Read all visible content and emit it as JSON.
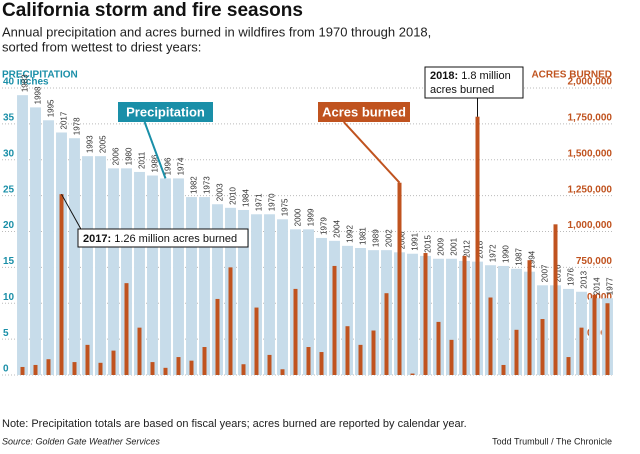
{
  "chart_data": {
    "type": "bar",
    "title": "California storm and fire seasons",
    "subtitle": [
      "Annual precipitation and acres burned in wildfires from 1970 through 2018,",
      "sorted from wettest to driest years:"
    ],
    "y_label": "PRECIPITATION",
    "y2_label": "ACRES BURNED",
    "categories": [
      "1983",
      "1998",
      "1995",
      "2017",
      "1978",
      "1993",
      "2005",
      "2006",
      "1980",
      "2011",
      "1986",
      "1996",
      "1974",
      "1982",
      "1973",
      "2003",
      "2010",
      "1984",
      "1971",
      "1970",
      "1975",
      "2000",
      "1999",
      "1979",
      "2004",
      "1992",
      "1981",
      "1989",
      "2002",
      "2008",
      "1991",
      "2015",
      "2009",
      "2001",
      "2012",
      "2018",
      "1972",
      "1990",
      "1987",
      "1994",
      "2007",
      "2016",
      "1976",
      "2013",
      "2014",
      "1977"
    ],
    "series": [
      {
        "name": "Precipitation",
        "color": "#c7dcea",
        "label_color": "#1a8fa8",
        "values": [
          39,
          37.3,
          35.5,
          33.8,
          33,
          30.5,
          30.5,
          28.8,
          28.8,
          28.3,
          27.8,
          27.4,
          27.4,
          24.8,
          24.8,
          23.8,
          23.3,
          23,
          22.4,
          22.4,
          21.7,
          20.3,
          20.3,
          19.1,
          18.7,
          18,
          17.7,
          17.4,
          17.4,
          17.1,
          16.9,
          16.6,
          16.2,
          16.2,
          15.9,
          15.8,
          15.3,
          15.2,
          14.8,
          14.4,
          12.5,
          12.5,
          12,
          11.6,
          10.7,
          10.7
        ]
      },
      {
        "name": "Acres burned",
        "color": "#c0531f",
        "axis": "y2",
        "values": [
          56000,
          70000,
          110000,
          1260000,
          90000,
          210000,
          85000,
          170000,
          640000,
          330000,
          90000,
          50000,
          125000,
          100000,
          195000,
          530000,
          750000,
          75000,
          470000,
          140000,
          40000,
          600000,
          195000,
          160000,
          760000,
          340000,
          210000,
          310000,
          570000,
          1340000,
          10000,
          850000,
          370000,
          245000,
          830000,
          1800000,
          540000,
          70000,
          315000,
          800000,
          390000,
          1050000,
          125000,
          330000,
          560000,
          500000
        ]
      }
    ],
    "ylim": [
      0,
      40
    ],
    "yticks": [
      0,
      5,
      10,
      15,
      20,
      25,
      30,
      35,
      {
        "value": 40,
        "label": "40 inches"
      }
    ],
    "y2lim": [
      0,
      2000000
    ],
    "y2ticks": [
      0,
      {
        "value": 250000,
        "label": "250,000"
      },
      {
        "value": 500000,
        "label": "500,000"
      },
      {
        "value": 750000,
        "label": "750,000"
      },
      {
        "value": 1000000,
        "label": "1,000,000"
      },
      {
        "value": 1250000,
        "label": "1,250,000"
      },
      {
        "value": 1500000,
        "label": "1,500,000"
      },
      {
        "value": 1750000,
        "label": "1,750,000"
      },
      {
        "value": 2000000,
        "label": "2,000,000"
      }
    ],
    "grid": true,
    "annotations": [
      {
        "bold": "2017:",
        "text": "1.26 million acres burned"
      },
      {
        "bold": "2018:",
        "text": "1.8 million",
        "text2": "acres burned"
      }
    ],
    "note": "Note: Precipitation totals are based on fiscal years; acres burned are reported by calendar year.",
    "source": "Source: Golden Gate Weather Services",
    "credit": "Todd Trumbull / The Chronicle"
  }
}
